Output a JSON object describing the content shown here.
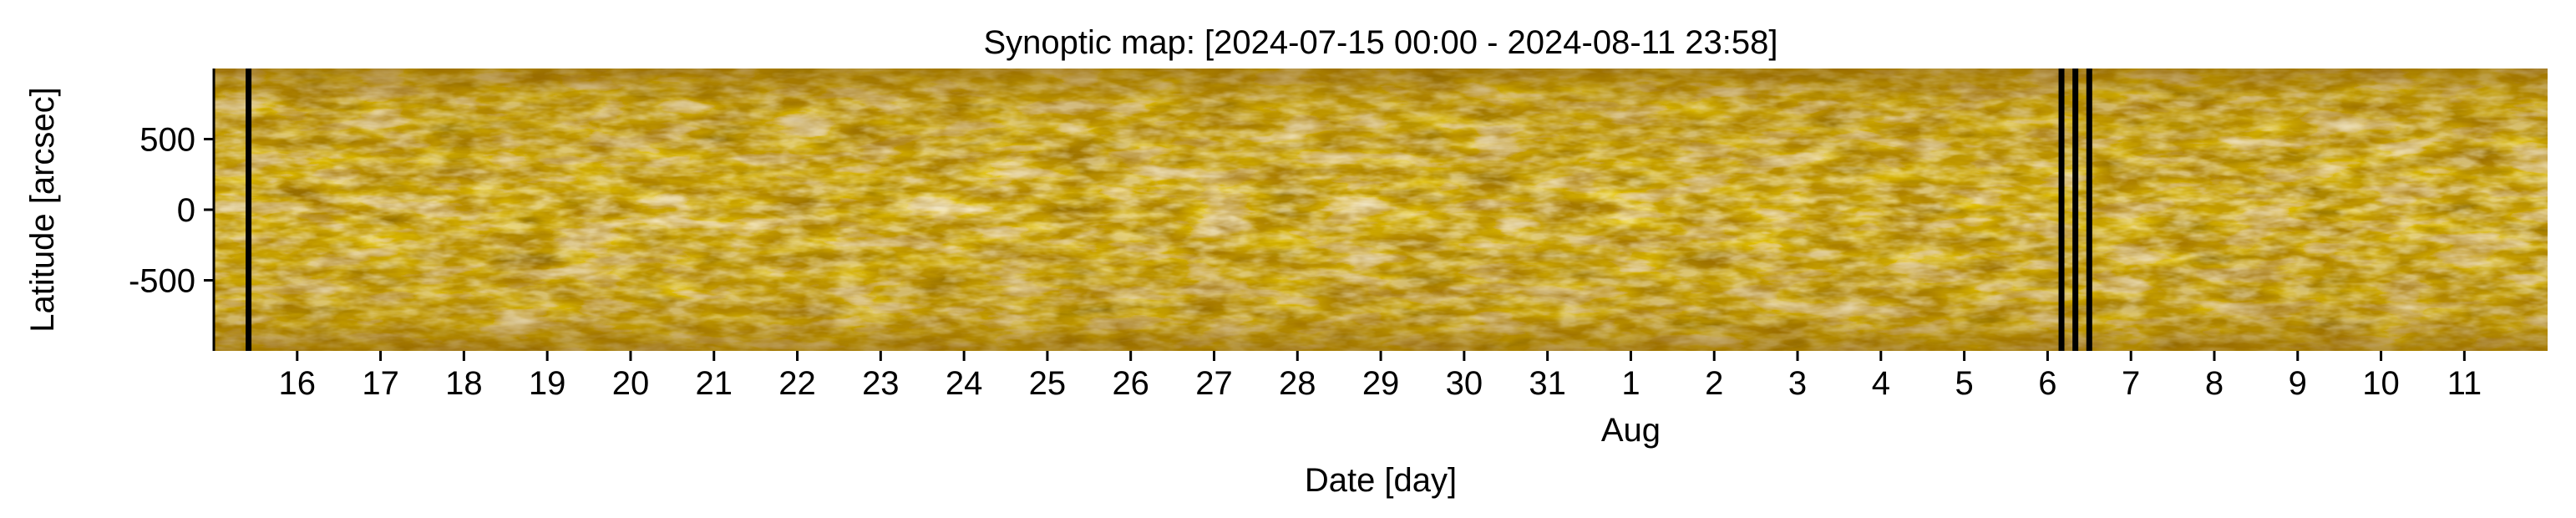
{
  "chart_data": {
    "type": "heatmap",
    "title": "Synoptic map: [2024-07-15 00:00 - 2024-08-11 23:58]",
    "xlabel": "Date [day]",
    "ylabel": "Latitude [arcsec]",
    "x_range": [
      "2024-07-15 00:00",
      "2024-08-11 23:58"
    ],
    "ylim": [
      -1000,
      1000
    ],
    "yticks": [
      500,
      0,
      -500
    ],
    "ytick_labels": [
      "500",
      "0",
      "-500"
    ],
    "xticks": [
      "2024-07-16",
      "2024-07-17",
      "2024-07-18",
      "2024-07-19",
      "2024-07-20",
      "2024-07-21",
      "2024-07-22",
      "2024-07-23",
      "2024-07-24",
      "2024-07-25",
      "2024-07-26",
      "2024-07-27",
      "2024-07-28",
      "2024-07-29",
      "2024-07-30",
      "2024-07-31",
      "2024-08-01",
      "2024-08-02",
      "2024-08-03",
      "2024-08-04",
      "2024-08-05",
      "2024-08-06",
      "2024-08-07",
      "2024-08-08",
      "2024-08-09",
      "2024-08-10",
      "2024-08-11"
    ],
    "xtick_labels": [
      "16",
      "17",
      "18",
      "19",
      "20",
      "21",
      "22",
      "23",
      "24",
      "25",
      "26",
      "27",
      "28",
      "29",
      "30",
      "31",
      "1",
      "2",
      "3",
      "4",
      "5",
      "6",
      "7",
      "8",
      "9",
      "10",
      "11"
    ],
    "month_label": "Aug",
    "month_label_at": "2024-08-01",
    "data_gaps": [
      "2024-07-15 10:00",
      "2024-08-06 04:00",
      "2024-08-06 08:00",
      "2024-08-06 12:00"
    ],
    "grid": false,
    "colormap": [
      "#3a2600",
      "#7a5200",
      "#b88000",
      "#e2a800",
      "#fbe08a",
      "#fffbe8"
    ],
    "background_color": "#a07000",
    "gap_color": "#000000"
  }
}
